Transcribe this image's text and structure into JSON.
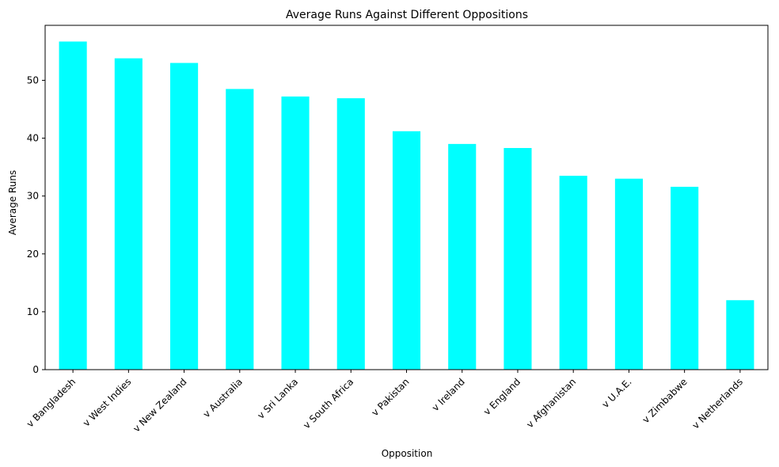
{
  "chart_data": {
    "type": "bar",
    "title": "Average Runs Against Different Oppositions",
    "xlabel": "Opposition",
    "ylabel": "Average Runs",
    "ylim": [
      0,
      59.5
    ],
    "yticks": [
      0,
      10,
      20,
      30,
      40,
      50
    ],
    "categories": [
      "v Bangladesh",
      "v West Indies",
      "v New Zealand",
      "v Australia",
      "v Sri Lanka",
      "v South Africa",
      "v Pakistan",
      "v Ireland",
      "v England",
      "v Afghanistan",
      "v U.A.E.",
      "v Zimbabwe",
      "v Netherlands"
    ],
    "values": [
      56.7,
      53.8,
      53.0,
      48.5,
      47.2,
      46.9,
      41.2,
      39.0,
      38.3,
      33.5,
      33.0,
      31.6,
      12.0
    ],
    "bar_color": "#00ffff",
    "grid": false,
    "legend": "none"
  }
}
